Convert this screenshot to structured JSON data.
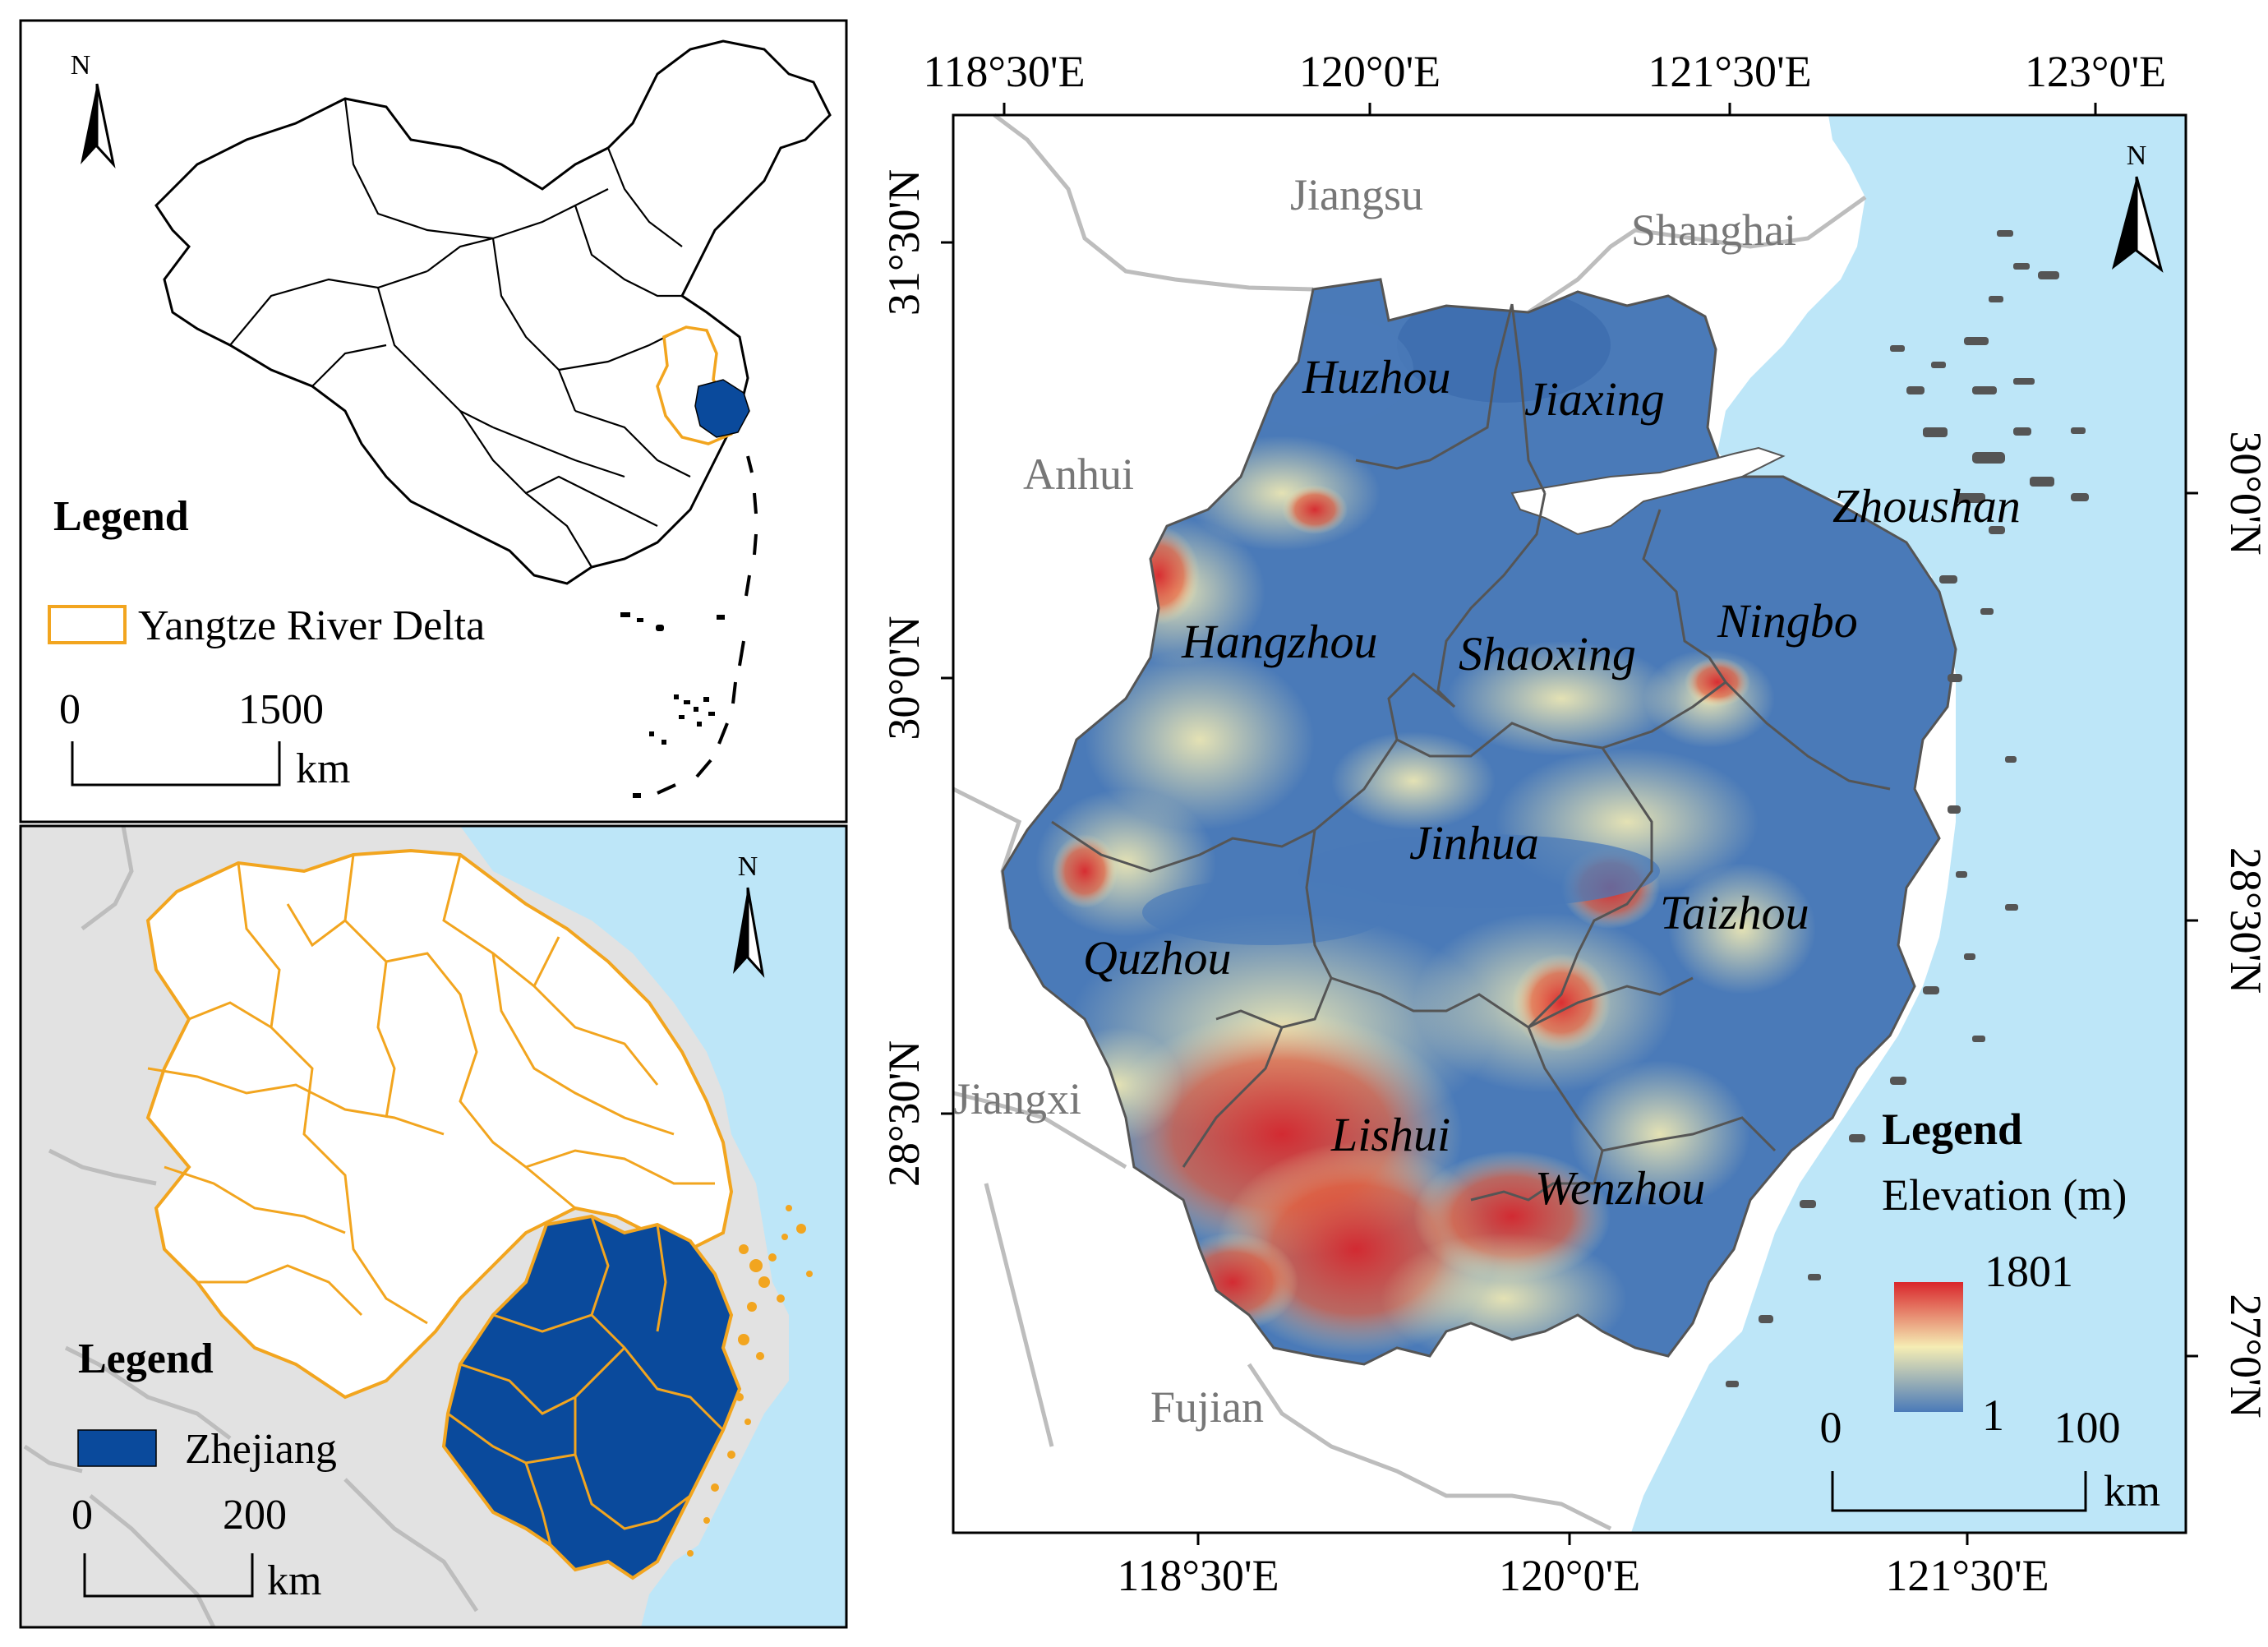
{
  "china_map": {
    "north": "N",
    "legend_title": "Legend",
    "legend_item": "Yangtze River Delta",
    "scale": {
      "zero": "0",
      "value": "1500",
      "unit": "km"
    },
    "colors": {
      "outline": "#000000",
      "yrd": "#f2a51f",
      "zhejiang": "#0a4a9c"
    }
  },
  "yrd_map": {
    "north": "N",
    "legend_title": "Legend",
    "legend_item": "Zhejiang",
    "scale": {
      "zero": "0",
      "value": "200",
      "unit": "km"
    },
    "colors": {
      "sea": "#bde6f8",
      "land": "#e2e2e2",
      "boundary": "#f2a51f",
      "zhejiang": "#0a4a9c",
      "neighbors": "#bdbdbd"
    }
  },
  "main_map": {
    "north": "N",
    "top_lon_ticks": [
      "118°30'E",
      "120°0'E",
      "121°30'E",
      "123°0'E"
    ],
    "bottom_lon_ticks": [
      "118°30'E",
      "120°0'E",
      "121°30'E"
    ],
    "left_lat_ticks": [
      "31°30'N",
      "30°0'N",
      "28°30'N"
    ],
    "right_lat_ticks": [
      "30°0'N",
      "28°30'N",
      "27°0'N"
    ],
    "provinces": [
      "Jiangsu",
      "Shanghai",
      "Anhui",
      "Jiangxi",
      "Fujian"
    ],
    "cities": [
      "Huzhou",
      "Jiaxing",
      "Zhoushan",
      "Hangzhou",
      "Shaoxing",
      "Ningbo",
      "Jinhua",
      "Taizhou",
      "Quzhou",
      "Lishui",
      "Wenzhou"
    ],
    "legend_title": "Legend",
    "legend_subtitle": "Elevation (m)",
    "elevation_max": "1801",
    "elevation_min": "1",
    "scale": {
      "zero": "0",
      "value": "100",
      "unit": "km"
    },
    "colors": {
      "sea": "#bde6f8",
      "low": "#4a7ab8",
      "mid": "#f5edb4",
      "high": "#d9262b",
      "province_label": "#777777"
    }
  }
}
